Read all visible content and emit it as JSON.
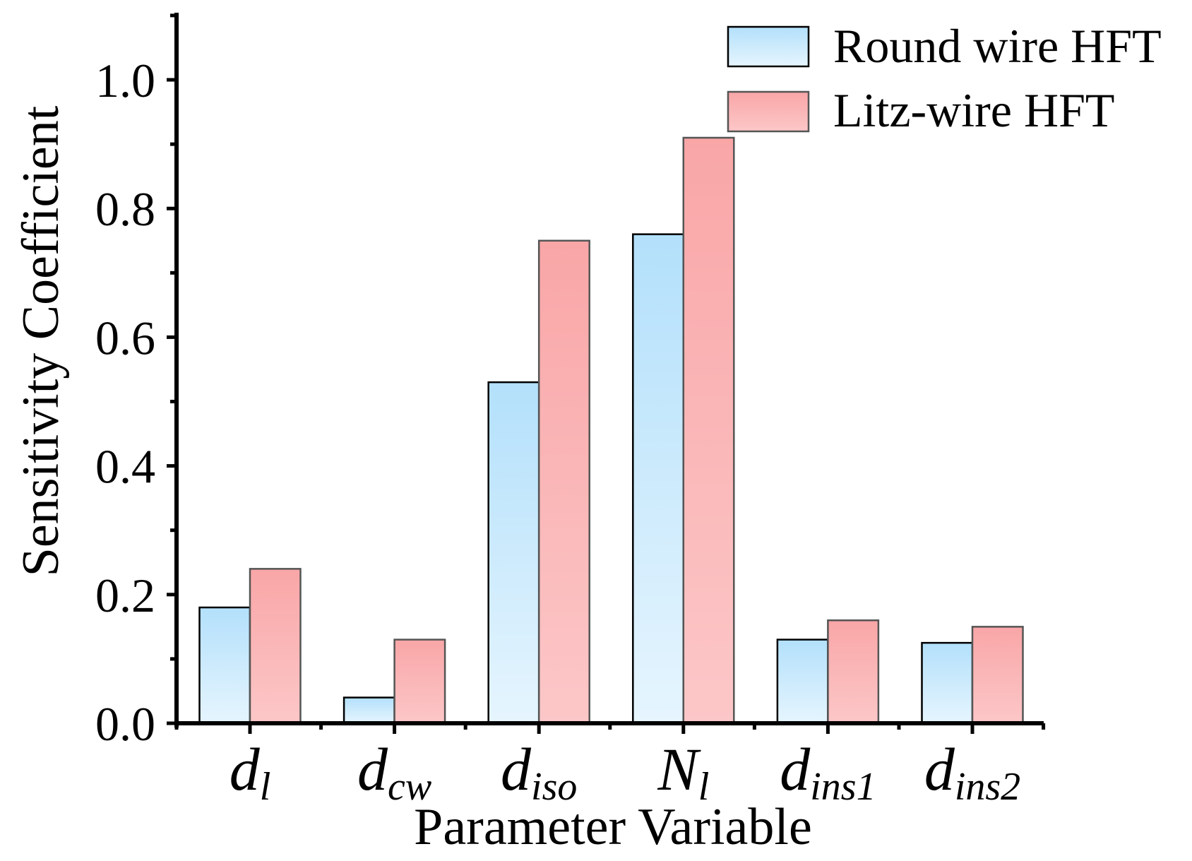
{
  "chart_data": {
    "type": "bar",
    "xlabel": "Parameter Variable",
    "ylabel": "Sensitivity Coefficient",
    "ylim": [
      0,
      1.1
    ],
    "yticks": [
      "0.0",
      "0.2",
      "0.4",
      "0.6",
      "0.8",
      "1.0"
    ],
    "categories": [
      {
        "base": "d",
        "sub": "l"
      },
      {
        "base": "d",
        "sub": "cw"
      },
      {
        "base": "d",
        "sub": "iso"
      },
      {
        "base": "N",
        "sub": "l"
      },
      {
        "base": "d",
        "sub": "ins1"
      },
      {
        "base": "d",
        "sub": "ins2"
      }
    ],
    "series": [
      {
        "name": "Round wire HFT",
        "values": [
          0.18,
          0.04,
          0.53,
          0.76,
          0.13,
          0.125
        ],
        "color_top": "#b3e0fb",
        "color_bottom": "#e6f5fe",
        "stroke": "#000000"
      },
      {
        "name": "Litz-wire HFT",
        "values": [
          0.24,
          0.13,
          0.75,
          0.91,
          0.16,
          0.15
        ],
        "color_top": "#f9a6a7",
        "color_bottom": "#fcc7c8",
        "stroke": "#555555"
      }
    ],
    "legend": "top-right",
    "grid": false
  }
}
